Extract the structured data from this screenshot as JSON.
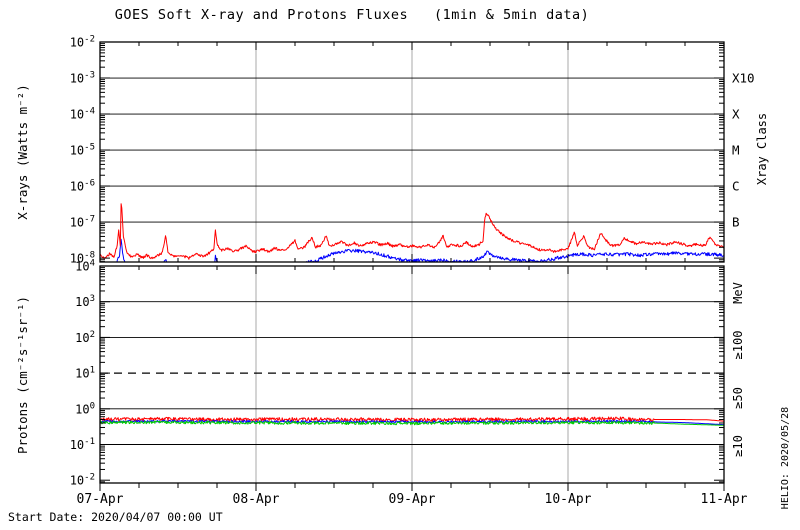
{
  "title": "GOES Soft X-ray and Protons Fluxes   (1min & 5min data)",
  "footer": {
    "start_date": "Start Date: 2020/04/07 00:00 UT",
    "credit": "HELIO: 2020/05/28"
  },
  "colors": {
    "background": "#ffffff",
    "axis": "#000000",
    "grid_horizontal": "#000000",
    "grid_vertical": "#a8a8a8",
    "xray_long": "#ff0000",
    "xray_short": "#0000ff",
    "protons_ge10": "#ff0000",
    "protons_ge50": "#0000ff",
    "protons_ge100": "#00cc00"
  },
  "x_axis": {
    "tick_labels": [
      "07-Apr",
      "08-Apr",
      "09-Apr",
      "10-Apr",
      "11-Apr"
    ],
    "tick_days": [
      0,
      1,
      2,
      3,
      4
    ],
    "minor_step_days": 0.25,
    "gridline_days": [
      1,
      2,
      3
    ]
  },
  "chart_data": [
    {
      "type": "line",
      "panel": "xray",
      "ylabel": "X-rays (Watts m⁻²)",
      "right_axis_label": "Xray Class",
      "ylim": [
        7.8e-09,
        0.01
      ],
      "tick_exponents": [
        -2,
        -3,
        -4,
        -5,
        -6,
        -7,
        -8
      ],
      "hgrid_exponents": [
        -3,
        -4,
        -5,
        -6,
        -7
      ],
      "dashed_exponents": [],
      "class_labels": [
        {
          "label": "X10",
          "exponent": -3
        },
        {
          "label": "X",
          "exponent": -4
        },
        {
          "label": "M",
          "exponent": -5
        },
        {
          "label": "C",
          "exponent": -6
        },
        {
          "label": "B",
          "exponent": -7
        }
      ],
      "series": [
        {
          "name": "xray-short-wave",
          "color": "#0000ff",
          "noise_dex": 0.045,
          "noise_until_day": 4.0,
          "points": [
            [
              0.0,
              6e-09
            ],
            [
              0.1,
              6e-09
            ],
            [
              0.125,
              1.2e-08
            ],
            [
              0.135,
              3.2e-08
            ],
            [
              0.145,
              1.4e-08
            ],
            [
              0.16,
              7e-09
            ],
            [
              0.2,
              6e-09
            ],
            [
              0.4,
              6e-09
            ],
            [
              0.42,
              9e-09
            ],
            [
              0.44,
              6e-09
            ],
            [
              0.73,
              6e-09
            ],
            [
              0.74,
              1.1e-08
            ],
            [
              0.76,
              6e-09
            ],
            [
              1.0,
              6e-09
            ],
            [
              1.3,
              7e-09
            ],
            [
              1.4,
              9e-09
            ],
            [
              1.46,
              1.2e-08
            ],
            [
              1.52,
              1.4e-08
            ],
            [
              1.58,
              1.6e-08
            ],
            [
              1.64,
              1.6e-08
            ],
            [
              1.7,
              1.5e-08
            ],
            [
              1.76,
              1.4e-08
            ],
            [
              1.82,
              1.2e-08
            ],
            [
              1.88,
              1e-08
            ],
            [
              1.94,
              9e-09
            ],
            [
              2.0,
              8.5e-09
            ],
            [
              2.06,
              9e-09
            ],
            [
              2.12,
              8e-09
            ],
            [
              2.18,
              9e-09
            ],
            [
              2.25,
              8.5e-09
            ],
            [
              2.32,
              8e-09
            ],
            [
              2.4,
              8.5e-09
            ],
            [
              2.465,
              1.2e-08
            ],
            [
              2.48,
              1.5e-08
            ],
            [
              2.52,
              1.2e-08
            ],
            [
              2.58,
              1e-08
            ],
            [
              2.65,
              9e-09
            ],
            [
              2.72,
              8.5e-09
            ],
            [
              2.8,
              8.5e-09
            ],
            [
              2.88,
              9e-09
            ],
            [
              2.95,
              1.05e-08
            ],
            [
              3.02,
              1.2e-08
            ],
            [
              3.08,
              1.3e-08
            ],
            [
              3.15,
              1.2e-08
            ],
            [
              3.22,
              1.3e-08
            ],
            [
              3.3,
              1.25e-08
            ],
            [
              3.38,
              1.3e-08
            ],
            [
              3.46,
              1.2e-08
            ],
            [
              3.54,
              1.3e-08
            ],
            [
              3.62,
              1.3e-08
            ],
            [
              3.7,
              1.4e-08
            ],
            [
              3.78,
              1.3e-08
            ],
            [
              3.86,
              1.3e-08
            ],
            [
              3.94,
              1.25e-08
            ],
            [
              4.0,
              1.2e-08
            ]
          ]
        },
        {
          "name": "xray-long-wave",
          "color": "#ff0000",
          "noise_dex": 0.035,
          "noise_until_day": 4.0,
          "points": [
            [
              0.0,
              1.2e-08
            ],
            [
              0.03,
              1e-08
            ],
            [
              0.06,
              1.3e-08
            ],
            [
              0.09,
              1.1e-08
            ],
            [
              0.11,
              2.2e-08
            ],
            [
              0.12,
              6.5e-08
            ],
            [
              0.13,
              2e-08
            ],
            [
              0.135,
              3.3e-07
            ],
            [
              0.14,
              2.5e-07
            ],
            [
              0.15,
              4e-08
            ],
            [
              0.17,
              1.5e-08
            ],
            [
              0.2,
              1.1e-08
            ],
            [
              0.24,
              1.3e-08
            ],
            [
              0.27,
              1e-08
            ],
            [
              0.3,
              1.2e-08
            ],
            [
              0.33,
              1e-08
            ],
            [
              0.36,
              1.1e-08
            ],
            [
              0.4,
              1.4e-08
            ],
            [
              0.42,
              4.3e-08
            ],
            [
              0.435,
              1.5e-08
            ],
            [
              0.47,
              1.1e-08
            ],
            [
              0.52,
              1.2e-08
            ],
            [
              0.57,
              1e-08
            ],
            [
              0.62,
              1.3e-08
            ],
            [
              0.66,
              1.1e-08
            ],
            [
              0.7,
              1.4e-08
            ],
            [
              0.73,
              1.8e-08
            ],
            [
              0.74,
              6e-08
            ],
            [
              0.75,
              2.5e-08
            ],
            [
              0.78,
              1.6e-08
            ],
            [
              0.82,
              1.9e-08
            ],
            [
              0.86,
              1.5e-08
            ],
            [
              0.9,
              1.8e-08
            ],
            [
              0.94,
              2.2e-08
            ],
            [
              0.97,
              1.6e-08
            ],
            [
              1.0,
              1.5e-08
            ],
            [
              1.04,
              1.8e-08
            ],
            [
              1.08,
              1.5e-08
            ],
            [
              1.12,
              1.9e-08
            ],
            [
              1.16,
              1.6e-08
            ],
            [
              1.2,
              1.8e-08
            ],
            [
              1.25,
              3.1e-08
            ],
            [
              1.27,
              1.7e-08
            ],
            [
              1.31,
              2e-08
            ],
            [
              1.36,
              3.9e-08
            ],
            [
              1.38,
              2e-08
            ],
            [
              1.42,
              2.3e-08
            ],
            [
              1.45,
              4.3e-08
            ],
            [
              1.47,
              2.2e-08
            ],
            [
              1.51,
              2.4e-08
            ],
            [
              1.55,
              2.9e-08
            ],
            [
              1.59,
              2.2e-08
            ],
            [
              1.63,
              2.6e-08
            ],
            [
              1.67,
              2.2e-08
            ],
            [
              1.71,
              2.5e-08
            ],
            [
              1.76,
              2.8e-08
            ],
            [
              1.8,
              2.3e-08
            ],
            [
              1.84,
              2.6e-08
            ],
            [
              1.88,
              2.1e-08
            ],
            [
              1.92,
              2.4e-08
            ],
            [
              1.96,
              2e-08
            ],
            [
              2.0,
              2.2e-08
            ],
            [
              2.05,
              2e-08
            ],
            [
              2.1,
              2.3e-08
            ],
            [
              2.15,
              2e-08
            ],
            [
              2.2,
              4.1e-08
            ],
            [
              2.22,
              2.1e-08
            ],
            [
              2.27,
              2.4e-08
            ],
            [
              2.31,
              2.1e-08
            ],
            [
              2.35,
              2.7e-08
            ],
            [
              2.39,
              2.1e-08
            ],
            [
              2.43,
              2.4e-08
            ],
            [
              2.455,
              3e-08
            ],
            [
              2.465,
              1.1e-07
            ],
            [
              2.475,
              1.7e-07
            ],
            [
              2.49,
              1.5e-07
            ],
            [
              2.51,
              1e-07
            ],
            [
              2.54,
              6.5e-08
            ],
            [
              2.58,
              4.5e-08
            ],
            [
              2.62,
              3.4e-08
            ],
            [
              2.66,
              2.9e-08
            ],
            [
              2.71,
              2.5e-08
            ],
            [
              2.76,
              2.2e-08
            ],
            [
              2.8,
              1.8e-08
            ],
            [
              2.84,
              1.6e-08
            ],
            [
              2.88,
              1.7e-08
            ],
            [
              2.92,
              1.5e-08
            ],
            [
              2.96,
              1.7e-08
            ],
            [
              3.0,
              1.8e-08
            ],
            [
              3.04,
              5.2e-08
            ],
            [
              3.06,
              2.2e-08
            ],
            [
              3.1,
              4.2e-08
            ],
            [
              3.13,
              2e-08
            ],
            [
              3.17,
              1.8e-08
            ],
            [
              3.21,
              5e-08
            ],
            [
              3.24,
              3.2e-08
            ],
            [
              3.28,
              2.2e-08
            ],
            [
              3.33,
              2.4e-08
            ],
            [
              3.36,
              3.5e-08
            ],
            [
              3.4,
              3e-08
            ],
            [
              3.43,
              2.5e-08
            ],
            [
              3.48,
              2.8e-08
            ],
            [
              3.53,
              2.4e-08
            ],
            [
              3.58,
              2.7e-08
            ],
            [
              3.63,
              2.3e-08
            ],
            [
              3.68,
              2.8e-08
            ],
            [
              3.73,
              2.5e-08
            ],
            [
              3.78,
              2.2e-08
            ],
            [
              3.83,
              2.5e-08
            ],
            [
              3.88,
              2.2e-08
            ],
            [
              3.91,
              4e-08
            ],
            [
              3.95,
              2.2e-08
            ],
            [
              4.0,
              2e-08
            ]
          ]
        }
      ]
    },
    {
      "type": "line",
      "panel": "protons",
      "ylabel": "Protons (cm⁻²s⁻¹sr⁻¹)",
      "right_axis_label": "MeV",
      "ylim": [
        0.00835,
        10000.0
      ],
      "tick_exponents": [
        4,
        3,
        2,
        1,
        0,
        -1,
        -2
      ],
      "hgrid_exponents": [
        3,
        2,
        0,
        -1
      ],
      "dashed_exponents": [
        1
      ],
      "threshold_labels": [
        {
          "label": "≥100",
          "color": "#00cc00"
        },
        {
          "label": "≥50",
          "color": "#0000ff"
        },
        {
          "label": "≥10",
          "color": "#ff0000"
        }
      ],
      "series": [
        {
          "name": "protons-ge10mev",
          "color": "#ff0000",
          "noise_dex": 0.05,
          "noise_until_day": 3.55,
          "points": [
            [
              0.0,
              0.5
            ],
            [
              0.4,
              0.52
            ],
            [
              0.8,
              0.5
            ],
            [
              1.2,
              0.51
            ],
            [
              1.6,
              0.5
            ],
            [
              2.0,
              0.49
            ],
            [
              2.4,
              0.5
            ],
            [
              2.8,
              0.51
            ],
            [
              3.1,
              0.52
            ],
            [
              3.3,
              0.53
            ],
            [
              3.55,
              0.5
            ],
            [
              3.75,
              0.5
            ],
            [
              3.9,
              0.49
            ],
            [
              4.0,
              0.45
            ]
          ]
        },
        {
          "name": "protons-ge50mev",
          "color": "#0000ff",
          "noise_dex": 0.028,
          "noise_until_day": 3.55,
          "points": [
            [
              0.0,
              0.44
            ],
            [
              0.5,
              0.45
            ],
            [
              1.0,
              0.44
            ],
            [
              1.5,
              0.44
            ],
            [
              2.0,
              0.43
            ],
            [
              2.5,
              0.44
            ],
            [
              3.0,
              0.44
            ],
            [
              3.3,
              0.45
            ],
            [
              3.55,
              0.43
            ],
            [
              3.75,
              0.41
            ],
            [
              4.0,
              0.36
            ]
          ]
        },
        {
          "name": "protons-ge100mev",
          "color": "#00cc00",
          "noise_dex": 0.04,
          "noise_until_day": 3.55,
          "points": [
            [
              0.0,
              0.41
            ],
            [
              0.5,
              0.42
            ],
            [
              1.0,
              0.4
            ],
            [
              1.5,
              0.4
            ],
            [
              2.0,
              0.39
            ],
            [
              2.5,
              0.4
            ],
            [
              3.0,
              0.41
            ],
            [
              3.3,
              0.41
            ],
            [
              3.55,
              0.4
            ],
            [
              3.75,
              0.37
            ],
            [
              4.0,
              0.345
            ]
          ]
        }
      ]
    }
  ]
}
